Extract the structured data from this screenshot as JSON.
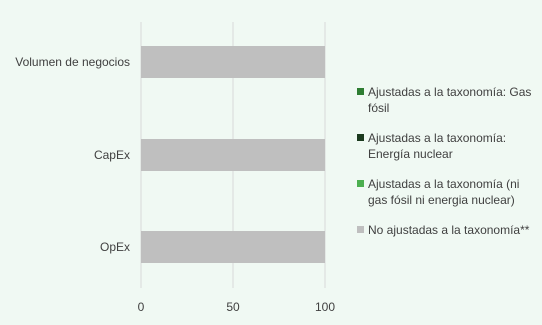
{
  "chart_data": {
    "type": "bar",
    "orientation": "horizontal",
    "stacked": true,
    "categories": [
      "Volumen de negocios",
      "CapEx",
      "OpEx"
    ],
    "series": [
      {
        "name": "Ajustadas a la taxonomía: Gas fósil",
        "color": "#2e7d32",
        "values": [
          0,
          0,
          0
        ]
      },
      {
        "name": "Ajustadas a la taxonomía: Energía nuclear",
        "color": "#1b3a1e",
        "values": [
          0,
          0,
          0
        ]
      },
      {
        "name": "Ajustadas a la taxonomía (ni gas fósil ni energia nuclear)",
        "color": "#4caf50",
        "values": [
          0,
          0,
          0
        ]
      },
      {
        "name": "No ajustadas a la taxonomía**",
        "color": "#bfbfbf",
        "values": [
          100,
          100,
          100
        ]
      }
    ],
    "xlim": [
      0,
      100
    ],
    "xticks": [
      "0",
      "50",
      "100"
    ],
    "grid": true,
    "legend_position": "right"
  }
}
